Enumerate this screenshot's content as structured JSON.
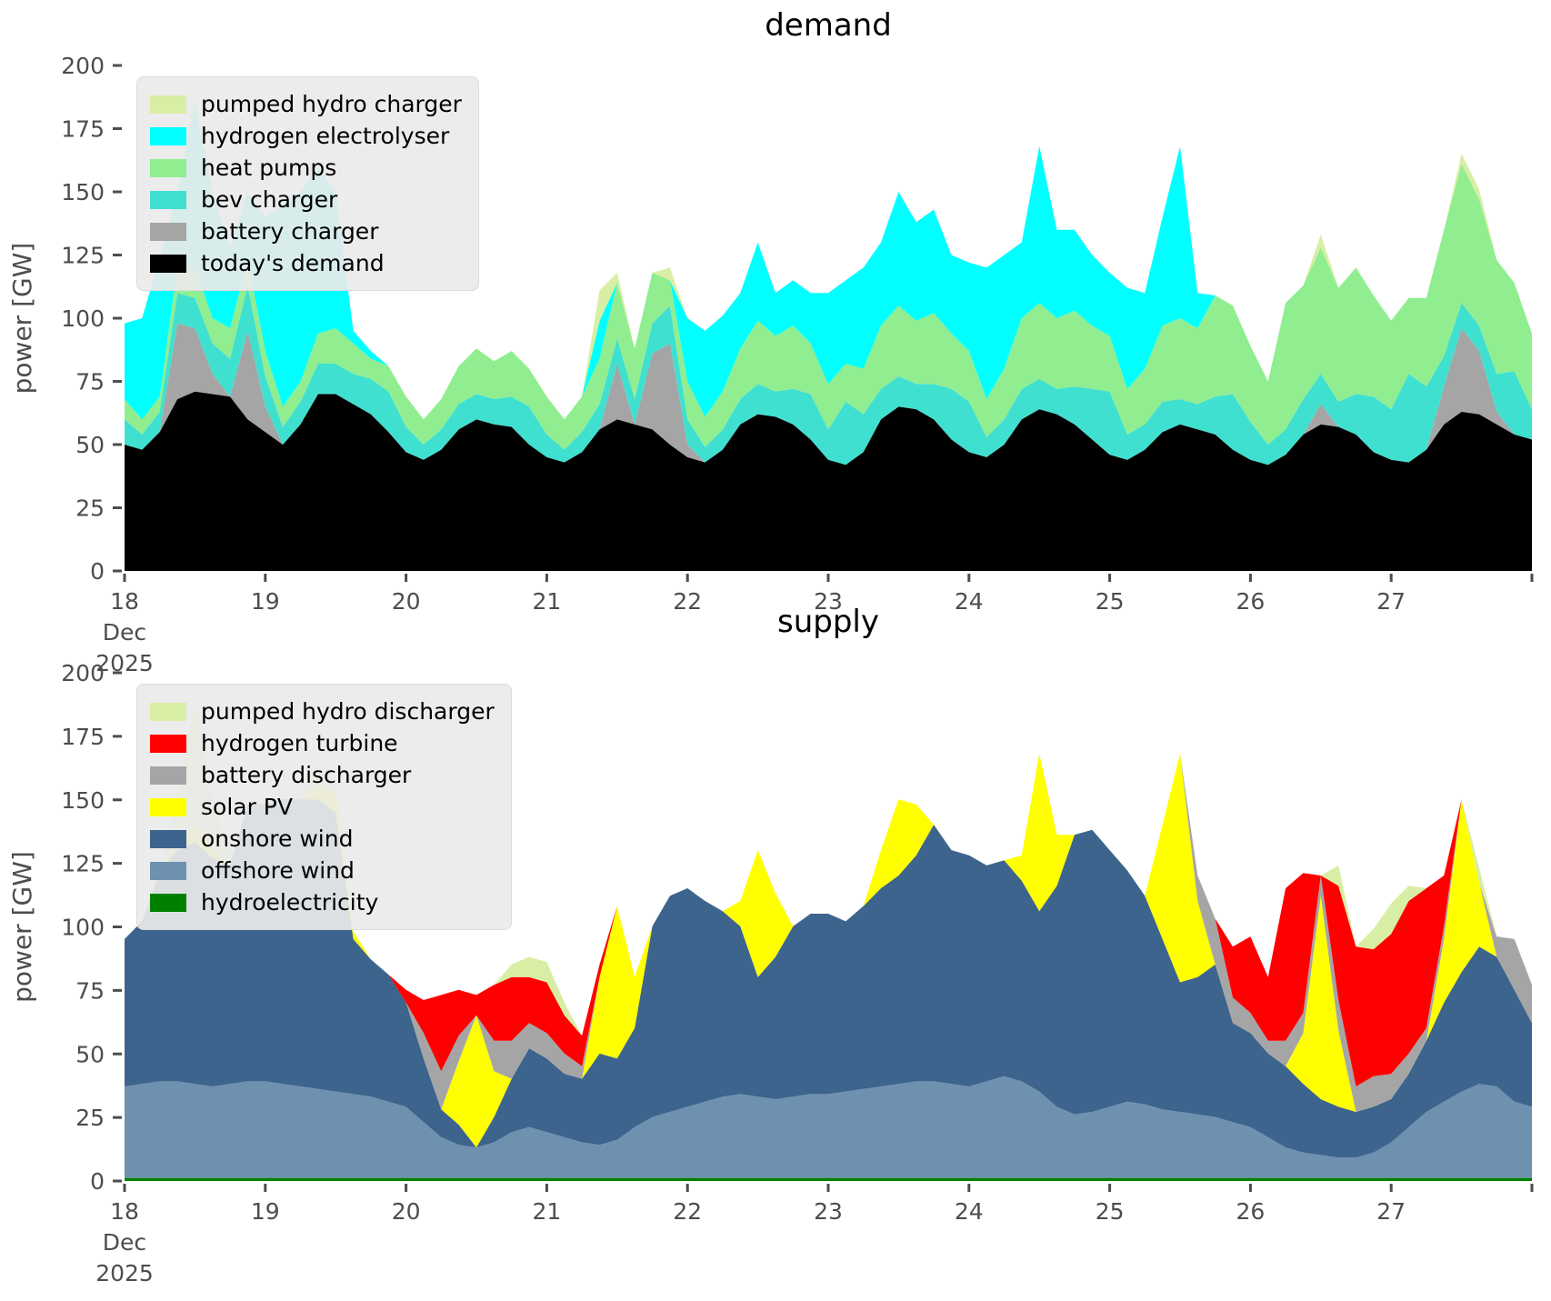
{
  "ylabel": "power [GW]",
  "colors": {
    "pumped_hydro": "#d8eea4",
    "electrolyser": "#00ffff",
    "heat_pumps": "#90ee90",
    "bev": "#40e0d0",
    "battery": "#a5a5a5",
    "demand_black": "#000000",
    "turbine": "#ff0000",
    "solar": "#ffff00",
    "onshore": "#3c648c",
    "offshore": "#6e91af",
    "hydro": "#008000",
    "tick_text": "#4d4d4d",
    "legend_bg": "#eaeaea"
  },
  "chart_data": [
    {
      "type": "area",
      "title": "demand",
      "ylabel": "power [GW]",
      "ylim": [
        0,
        200
      ],
      "yticks": [
        0,
        25,
        50,
        75,
        100,
        125,
        150,
        175,
        200
      ],
      "grid": false,
      "legend_position": "upper left",
      "x_axis": {
        "day_ticks": [
          18,
          19,
          20,
          21,
          22,
          23,
          24,
          25,
          26,
          27
        ],
        "month": "Dec",
        "year": "2025",
        "hours_start": 0,
        "hours_step": 3,
        "hours_total": 240
      },
      "series": [
        {
          "name": "today's demand",
          "color": "demand_black",
          "values": [
            50,
            48,
            55,
            68,
            71,
            70,
            69,
            60,
            55,
            50,
            58,
            70,
            70,
            66,
            62,
            55,
            47,
            44,
            48,
            56,
            60,
            58,
            57,
            50,
            45,
            43,
            47,
            56,
            60,
            58,
            56,
            50,
            45,
            43,
            48,
            58,
            62,
            61,
            58,
            52,
            44,
            42,
            47,
            60,
            65,
            64,
            60,
            52,
            47,
            45,
            50,
            60,
            64,
            62,
            58,
            52,
            46,
            44,
            48,
            55,
            58,
            56,
            54,
            48,
            44,
            42,
            46,
            54,
            58,
            57,
            54,
            47,
            44,
            43,
            48,
            58,
            63,
            62,
            58,
            54,
            52
          ]
        },
        {
          "name": "battery charger",
          "color": "battery",
          "values": [
            0,
            0,
            0,
            30,
            25,
            8,
            0,
            35,
            10,
            0,
            0,
            0,
            0,
            0,
            0,
            0,
            0,
            0,
            0,
            0,
            0,
            0,
            0,
            0,
            0,
            0,
            0,
            0,
            22,
            0,
            30,
            40,
            5,
            0,
            0,
            0,
            0,
            0,
            0,
            0,
            0,
            0,
            0,
            0,
            0,
            0,
            0,
            0,
            0,
            0,
            0,
            0,
            0,
            0,
            0,
            0,
            0,
            0,
            0,
            0,
            0,
            0,
            0,
            0,
            0,
            0,
            0,
            0,
            8,
            0,
            0,
            0,
            0,
            0,
            0,
            15,
            33,
            25,
            5,
            0,
            0
          ]
        },
        {
          "name": "bev charger",
          "color": "bev",
          "values": [
            10,
            6,
            8,
            12,
            12,
            12,
            15,
            18,
            12,
            7,
            9,
            12,
            12,
            12,
            14,
            16,
            10,
            6,
            8,
            10,
            10,
            10,
            12,
            15,
            9,
            5,
            8,
            10,
            10,
            10,
            12,
            15,
            10,
            6,
            8,
            10,
            12,
            10,
            14,
            18,
            12,
            25,
            15,
            12,
            12,
            10,
            14,
            20,
            20,
            8,
            10,
            12,
            12,
            10,
            15,
            20,
            25,
            10,
            10,
            12,
            10,
            10,
            15,
            22,
            15,
            8,
            10,
            14,
            12,
            10,
            16,
            22,
            20,
            35,
            25,
            12,
            10,
            10,
            15,
            25,
            12
          ]
        },
        {
          "name": "heat pumps",
          "color": "heat_pumps",
          "values": [
            8,
            6,
            6,
            10,
            12,
            10,
            12,
            10,
            10,
            8,
            8,
            12,
            14,
            12,
            8,
            10,
            12,
            10,
            12,
            15,
            18,
            15,
            18,
            15,
            15,
            12,
            14,
            18,
            22,
            20,
            20,
            10,
            15,
            12,
            15,
            20,
            25,
            22,
            25,
            20,
            18,
            15,
            18,
            25,
            28,
            25,
            28,
            22,
            20,
            15,
            20,
            28,
            30,
            28,
            30,
            25,
            22,
            18,
            22,
            30,
            32,
            30,
            40,
            35,
            30,
            25,
            50,
            45,
            50,
            45,
            50,
            40,
            35,
            30,
            35,
            50,
            55,
            50,
            45,
            35,
            30
          ]
        },
        {
          "name": "hydrogen electrolyser",
          "color": "electrolyser",
          "values": [
            30,
            40,
            55,
            30,
            65,
            50,
            32,
            27,
            53,
            80,
            75,
            66,
            54,
            5,
            3,
            0,
            0,
            0,
            0,
            0,
            0,
            0,
            0,
            0,
            0,
            0,
            0,
            15,
            0,
            0,
            0,
            0,
            25,
            34,
            30,
            22,
            31,
            17,
            18,
            20,
            36,
            33,
            40,
            33,
            45,
            39,
            41,
            31,
            35,
            52,
            45,
            30,
            62,
            35,
            32,
            28,
            25,
            40,
            30,
            43,
            68,
            14,
            0,
            0,
            0,
            0,
            0,
            0,
            0,
            0,
            0,
            0,
            0,
            0,
            0,
            0,
            0,
            0,
            0,
            0,
            0
          ]
        },
        {
          "name": "pumped hydro charger",
          "color": "pumped_hydro",
          "values": [
            0,
            0,
            0,
            0,
            5,
            0,
            0,
            0,
            0,
            0,
            0,
            0,
            0,
            0,
            0,
            0,
            0,
            0,
            0,
            0,
            0,
            0,
            0,
            0,
            0,
            0,
            0,
            12,
            4,
            0,
            0,
            5,
            0,
            0,
            0,
            0,
            0,
            0,
            0,
            0,
            0,
            0,
            0,
            0,
            0,
            0,
            0,
            0,
            0,
            0,
            0,
            0,
            0,
            0,
            0,
            0,
            0,
            0,
            0,
            0,
            0,
            0,
            0,
            0,
            0,
            0,
            0,
            0,
            5,
            0,
            0,
            0,
            0,
            0,
            0,
            0,
            4,
            4,
            0,
            0,
            0
          ]
        }
      ]
    },
    {
      "type": "area",
      "title": "supply",
      "ylabel": "power [GW]",
      "ylim": [
        0,
        200
      ],
      "yticks": [
        0,
        25,
        50,
        75,
        100,
        125,
        150,
        175,
        200
      ],
      "grid": false,
      "legend_position": "upper left",
      "x_axis": {
        "day_ticks": [
          18,
          19,
          20,
          21,
          22,
          23,
          24,
          25,
          26,
          27
        ],
        "month": "Dec",
        "year": "2025",
        "hours_start": 0,
        "hours_step": 3,
        "hours_total": 240
      },
      "series": [
        {
          "name": "hydroelectricity",
          "color": "hydro",
          "constant": 1.2,
          "length": 81
        },
        {
          "name": "offshore wind",
          "color": "offshore",
          "values": [
            36,
            37,
            38,
            38,
            37,
            36,
            37,
            38,
            38,
            37,
            36,
            35,
            34,
            33,
            32,
            30,
            28,
            22,
            16,
            13,
            12,
            14,
            18,
            20,
            18,
            16,
            14,
            13,
            15,
            20,
            24,
            26,
            28,
            30,
            32,
            33,
            32,
            31,
            32,
            33,
            33,
            34,
            35,
            36,
            37,
            38,
            38,
            37,
            36,
            38,
            40,
            38,
            34,
            28,
            25,
            26,
            28,
            30,
            29,
            27,
            26,
            25,
            24,
            22,
            20,
            16,
            12,
            10,
            9,
            8,
            8,
            10,
            14,
            20,
            26,
            30,
            34,
            37,
            36,
            30,
            28
          ]
        },
        {
          "name": "onshore wind",
          "color": "onshore",
          "values": [
            58,
            64,
            83,
            91,
            95,
            90,
            86,
            109,
            109,
            112,
            113,
            114,
            110,
            61,
            54,
            50,
            41,
            25,
            11,
            8,
            0,
            10,
            21,
            31,
            29,
            25,
            25,
            36,
            32,
            39,
            75,
            85,
            86,
            79,
            73,
            66,
            47,
            56,
            67,
            71,
            71,
            67,
            72,
            78,
            82,
            89,
            101,
            92,
            91,
            85,
            85,
            79,
            71,
            87,
            110,
            111,
            101,
            91,
            82,
            67,
            51,
            54,
            60,
            39,
            37,
            33,
            32,
            27,
            22,
            20,
            18,
            18,
            17,
            21,
            28,
            39,
            47,
            54,
            51,
            44,
            33
          ]
        },
        {
          "name": "solar PV",
          "color": "solar",
          "values": [
            0,
            0,
            0,
            2,
            7,
            3,
            0,
            0,
            0,
            0,
            0,
            5,
            8,
            3,
            0,
            0,
            0,
            0,
            0,
            25,
            52,
            18,
            0,
            0,
            0,
            0,
            0,
            30,
            60,
            20,
            0,
            0,
            0,
            0,
            0,
            10,
            50,
            25,
            0,
            0,
            0,
            0,
            0,
            15,
            30,
            20,
            0,
            0,
            0,
            0,
            0,
            10,
            62,
            20,
            0,
            0,
            0,
            0,
            0,
            45,
            90,
            30,
            0,
            0,
            0,
            0,
            0,
            20,
            80,
            30,
            0,
            0,
            0,
            0,
            0,
            25,
            68,
            25,
            0,
            0,
            0
          ]
        },
        {
          "name": "battery discharger",
          "color": "battery",
          "values": [
            0,
            0,
            0,
            0,
            0,
            0,
            0,
            0,
            0,
            0,
            0,
            0,
            0,
            0,
            0,
            0,
            0,
            10,
            15,
            10,
            0,
            12,
            15,
            10,
            10,
            8,
            5,
            0,
            0,
            0,
            0,
            0,
            0,
            0,
            0,
            0,
            0,
            0,
            0,
            0,
            0,
            0,
            0,
            0,
            0,
            0,
            0,
            0,
            0,
            0,
            0,
            0,
            0,
            0,
            0,
            0,
            0,
            0,
            0,
            0,
            0,
            10,
            18,
            10,
            8,
            5,
            10,
            8,
            8,
            12,
            10,
            12,
            10,
            8,
            5,
            5,
            0,
            0,
            8,
            20,
            15
          ]
        },
        {
          "name": "hydrogen turbine",
          "color": "turbine",
          "values": [
            0,
            0,
            0,
            0,
            0,
            0,
            0,
            0,
            0,
            0,
            0,
            0,
            0,
            0,
            0,
            0,
            5,
            13,
            30,
            18,
            8,
            22,
            25,
            18,
            20,
            15,
            12,
            5,
            0,
            0,
            0,
            0,
            0,
            0,
            0,
            0,
            0,
            0,
            0,
            0,
            0,
            0,
            0,
            0,
            0,
            0,
            0,
            0,
            0,
            0,
            0,
            0,
            0,
            0,
            0,
            0,
            0,
            0,
            0,
            0,
            0,
            0,
            0,
            20,
            30,
            25,
            60,
            55,
            0,
            45,
            55,
            50,
            55,
            60,
            55,
            20,
            0,
            0,
            0,
            0,
            0
          ]
        },
        {
          "name": "pumped hydro discharger",
          "color": "pumped_hydro",
          "values": [
            0,
            0,
            0,
            20,
            50,
            20,
            4,
            0,
            0,
            0,
            0,
            10,
            0,
            0,
            0,
            0,
            0,
            0,
            0,
            0,
            0,
            0,
            5,
            8,
            8,
            5,
            0,
            0,
            0,
            0,
            0,
            0,
            0,
            0,
            0,
            0,
            0,
            0,
            0,
            0,
            0,
            0,
            0,
            0,
            0,
            0,
            0,
            0,
            0,
            0,
            0,
            0,
            0,
            0,
            0,
            0,
            0,
            0,
            0,
            0,
            0,
            0,
            0,
            0,
            0,
            0,
            0,
            0,
            0,
            8,
            0,
            8,
            12,
            6,
            0,
            0,
            0,
            6,
            0,
            0,
            0
          ]
        }
      ]
    }
  ]
}
